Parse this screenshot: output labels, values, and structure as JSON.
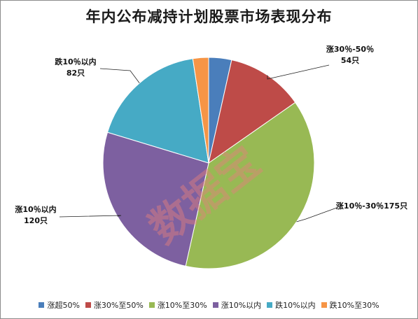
{
  "chart_data": {
    "type": "pie",
    "title": "年内公布减持计划股票市场表现分布",
    "categories": [
      "涨超50%",
      "涨30%至50%",
      "涨10%至30%",
      "涨10%以内",
      "跌10%以内",
      "跌10%至30%"
    ],
    "values": [
      16,
      54,
      175,
      120,
      82,
      11
    ],
    "colors": [
      "#4a7ebb",
      "#be4b48",
      "#98b954",
      "#7d60a0",
      "#46aac5",
      "#f69546"
    ],
    "data_labels": [
      null,
      {
        "name": "涨30％-50％",
        "value": "54只"
      },
      {
        "name": "涨10％-30％",
        "value": "175只"
      },
      {
        "name": "涨10％以内",
        "value": "120只"
      },
      {
        "name": "跌10％以内",
        "value": "82只"
      },
      null
    ],
    "legend_position": "bottom",
    "watermark": "数据宝"
  }
}
